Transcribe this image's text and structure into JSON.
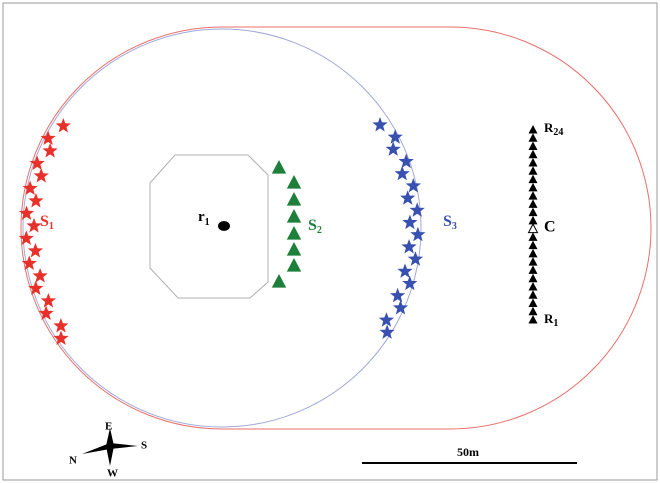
{
  "labels": {
    "s1": {
      "text": "S",
      "sub": "1"
    },
    "s2": {
      "text": "S",
      "sub": "2"
    },
    "s3": {
      "text": "S",
      "sub": "3"
    },
    "r1": {
      "text": "r",
      "sub": "1"
    },
    "receiver_top": {
      "text": "R",
      "sub": "24"
    },
    "receiver_bottom": {
      "text": "R",
      "sub": "1"
    },
    "center": "C"
  },
  "scale_bar": "50m",
  "compass": {
    "north": "N",
    "east": "E",
    "south": "S",
    "west": "W"
  }
}
